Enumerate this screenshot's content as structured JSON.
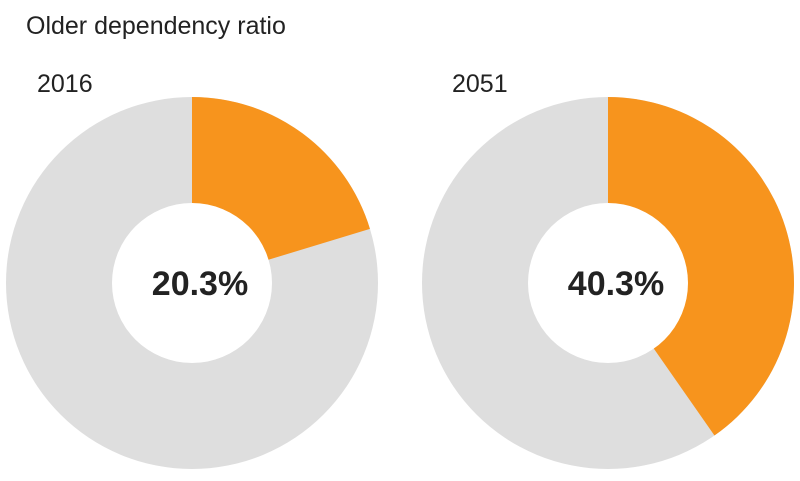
{
  "chart_data": {
    "type": "pie",
    "title": "Older dependency ratio",
    "charts": [
      {
        "label": "2016",
        "value": 20.3,
        "value_label": "20.3%"
      },
      {
        "label": "2051",
        "value": 40.3,
        "value_label": "40.3%"
      }
    ],
    "colors": {
      "value": "#f7941d",
      "remainder": "#dedede"
    },
    "legend": "none"
  }
}
